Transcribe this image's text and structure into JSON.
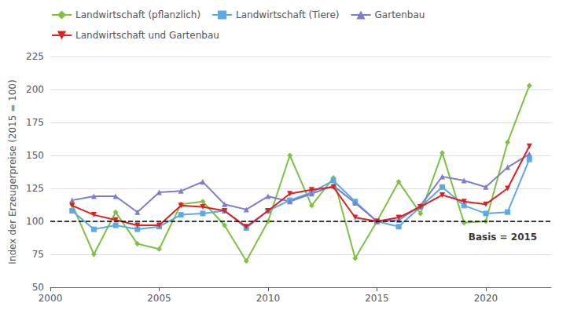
{
  "chart_data": {
    "type": "line",
    "y_label": "Index der Erzeugerpreise (2015 = 100)",
    "x": [
      2001,
      2002,
      2003,
      2004,
      2005,
      2006,
      2007,
      2008,
      2009,
      2010,
      2011,
      2012,
      2013,
      2014,
      2015,
      2016,
      2017,
      2018,
      2019,
      2020,
      2021,
      2022
    ],
    "series": [
      {
        "name": "Landwirtschaft (pflanzlich)",
        "color": "#7dc241",
        "marker": "diamond",
        "line_style": "solid",
        "values": [
          113,
          75,
          107,
          83,
          79,
          113,
          115,
          97,
          70,
          100,
          150,
          112,
          133,
          72,
          100,
          130,
          106,
          152,
          99,
          100,
          160,
          203
        ]
      },
      {
        "name": "Landwirtschaft (Tiere)",
        "color": "#5baae6",
        "marker": "square",
        "line_style": "solid",
        "values": [
          108,
          94,
          97,
          94,
          96,
          105,
          106,
          108,
          95,
          108,
          116,
          122,
          131,
          115,
          100,
          96,
          111,
          126,
          112,
          106,
          107,
          147
        ]
      },
      {
        "name": "Gartenbau",
        "color": "#7b7ece",
        "marker": "triangle",
        "line_style": "solid",
        "values": [
          116,
          119,
          119,
          107,
          122,
          123,
          130,
          113,
          109,
          119,
          115,
          121,
          127,
          114,
          100,
          101,
          112,
          134,
          131,
          126,
          141,
          151
        ]
      },
      {
        "name": "Landwirtschaft und Gartenbau",
        "color": "#e02020",
        "marker": "triangle_down",
        "line_style": "solid",
        "values": [
          112,
          105,
          101,
          97,
          97,
          112,
          111,
          108,
          96,
          108,
          121,
          124,
          126,
          103,
          100,
          103,
          111,
          120,
          115,
          113,
          125,
          157
        ]
      }
    ],
    "xlim": [
      2000,
      2023
    ],
    "xticks": [
      2000,
      2005,
      2010,
      2015,
      2020
    ],
    "ylim": [
      50,
      225
    ],
    "yticks": [
      50,
      75,
      100,
      125,
      150,
      175,
      200,
      225
    ],
    "grid": true,
    "legend": "top",
    "hlines": [
      {
        "y": 100,
        "color": "#000000",
        "line_style": "dashed"
      }
    ],
    "annotations": [
      {
        "text": "Basis = 2015",
        "x": 2019.2,
        "y": 88
      }
    ]
  }
}
